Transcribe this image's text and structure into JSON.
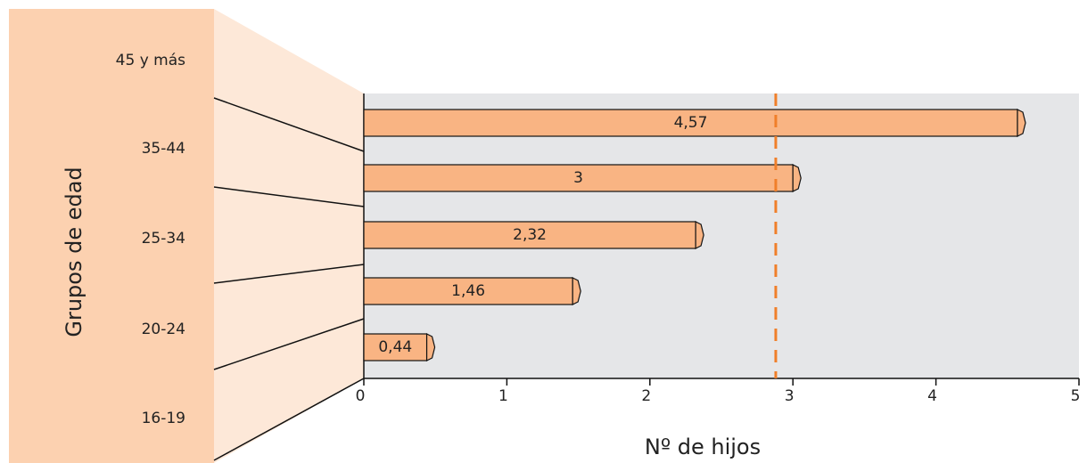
{
  "chart_data": {
    "type": "bar",
    "orientation": "horizontal",
    "xlabel": "Nº de hijos",
    "ylabel": "Grupos de edad",
    "categories": [
      "45 y más",
      "35-44",
      "25-34",
      "20-24",
      "16-19"
    ],
    "values": [
      4.57,
      3,
      2.32,
      1.46,
      0.44
    ],
    "value_labels": [
      "4,57",
      "3",
      "2,32",
      "1,46",
      "0,44"
    ],
    "color": "#f9b483",
    "xlim": [
      0,
      5
    ],
    "xticks": [
      0,
      1,
      2,
      3,
      4,
      5
    ],
    "reference_line": 2.88,
    "reference_color": "#f07f2a"
  }
}
